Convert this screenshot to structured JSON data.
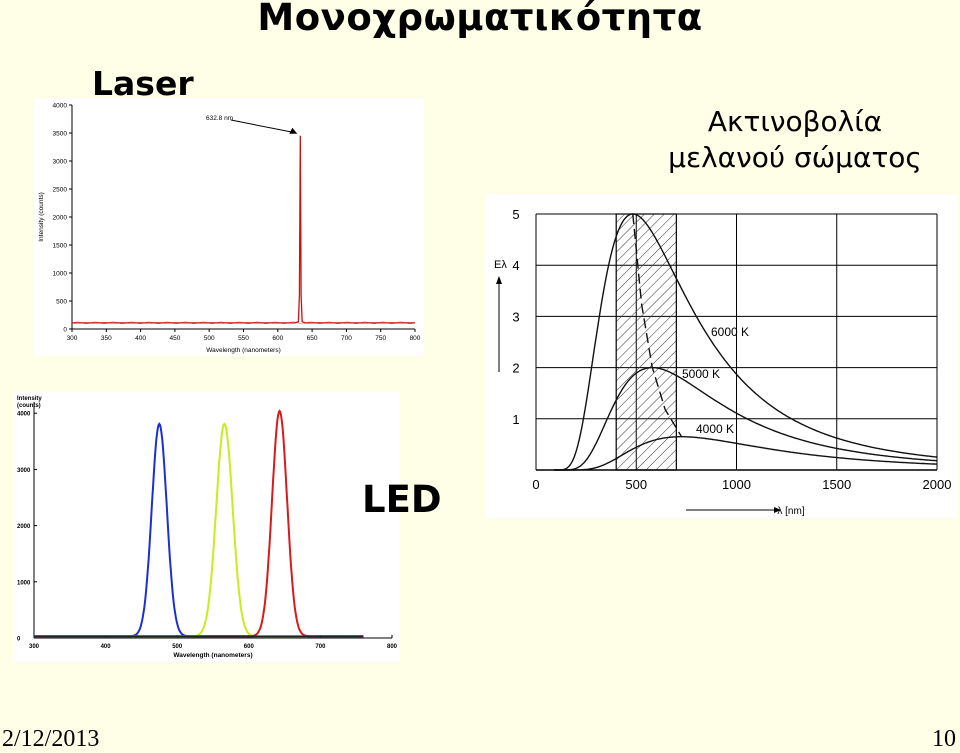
{
  "slide": {
    "title": "Μονοχρωματικότητα",
    "laser_label": "Laser",
    "blackbody_label_line1": "Ακτινοβολία",
    "blackbody_label_line2": "μελανού σώματος",
    "led_label": "LED",
    "date": "2/12/2013",
    "page_number": "10"
  },
  "colors": {
    "background": "#ffffe8",
    "laser_line": "#cc1111",
    "led_blue": "#1b2fd6",
    "led_yellow": "#c6ee1a",
    "led_red": "#d81a1a",
    "hatch": "#222222"
  },
  "chart_data": [
    {
      "type": "line",
      "name": "laser",
      "xlabel": "Wavelength (nanometers)",
      "ylabel": "Intensity (counts)",
      "xlim": [
        300,
        800
      ],
      "ylim": [
        0,
        4000
      ],
      "xticks": [
        300,
        350,
        400,
        450,
        500,
        550,
        600,
        650,
        700,
        750,
        800
      ],
      "yticks": [
        0,
        500,
        1000,
        1500,
        2000,
        2500,
        3000,
        3500,
        4000
      ],
      "annotation": "632.8 nm",
      "series": [
        {
          "color": "#cc1111",
          "x": [
            300,
            400,
            500,
            600,
            625,
            630,
            631.5,
            632.8,
            634,
            635.5,
            640,
            700,
            800
          ],
          "y": [
            110,
            110,
            110,
            110,
            110,
            130,
            600,
            3450,
            600,
            130,
            110,
            110,
            110
          ]
        }
      ]
    },
    {
      "type": "line",
      "name": "led",
      "xlabel": "Wavelength (nanometers)",
      "ylabel": "Intensity (counts)",
      "xlim": [
        300,
        800
      ],
      "ylim": [
        0,
        4200
      ],
      "xticks": [
        300,
        400,
        500,
        600,
        700,
        800
      ],
      "yticks": [
        0,
        1000,
        2000,
        3000,
        4000
      ],
      "series": [
        {
          "color": "#1b2fd6",
          "peak": 475,
          "height": 3780,
          "width": 10.5
        },
        {
          "color": "#c6ee1a",
          "peak": 566,
          "height": 3780,
          "width": 11.5
        },
        {
          "color": "#d81a1a",
          "peak": 643,
          "height": 4010,
          "width": 10.5
        }
      ]
    },
    {
      "type": "line",
      "name": "blackbody",
      "xlabel": "λ [nm]",
      "ylabel": "Eλ",
      "xlim": [
        0,
        2000
      ],
      "ylim": [
        0,
        5
      ],
      "xticks": [
        0,
        500,
        1000,
        1500,
        2000
      ],
      "yticks": [
        1,
        2,
        3,
        4,
        5
      ],
      "visible_band_nm": [
        400,
        700
      ],
      "series": [
        {
          "name": "6000 K",
          "T": 6000,
          "peak_value": 5.0
        },
        {
          "name": "5000 K",
          "T": 5000,
          "peak_value": 2.0
        },
        {
          "name": "4000 K",
          "T": 4000,
          "peak_value": 0.65
        }
      ],
      "series_labels": [
        "6000 K",
        "5000 K",
        "4000 K"
      ]
    }
  ]
}
